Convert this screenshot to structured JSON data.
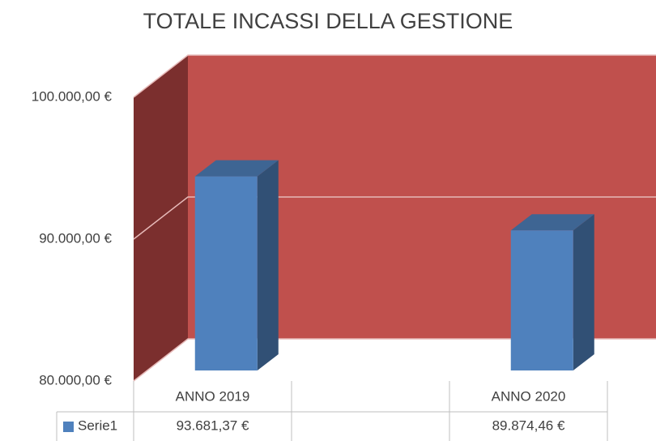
{
  "chart_data": {
    "type": "bar3d",
    "title": "TOTALE INCASSI DELLA GESTIONE",
    "categories": [
      "ANNO 2019",
      null,
      "ANNO 2020"
    ],
    "series": [
      {
        "name": "Serie1",
        "color": "#4f81bd",
        "values": [
          93681.37,
          null,
          89874.46
        ],
        "value_labels": [
          "93.681,37 €",
          null,
          "89.874,46 €"
        ]
      }
    ],
    "ylim": [
      80000,
      100000
    ],
    "yticks": [
      {
        "value": 80000,
        "label": "80.000,00 €"
      },
      {
        "value": 90000,
        "label": "90.000,00 €"
      },
      {
        "value": 100000,
        "label": "100.000,00 €"
      }
    ],
    "grid": true
  }
}
